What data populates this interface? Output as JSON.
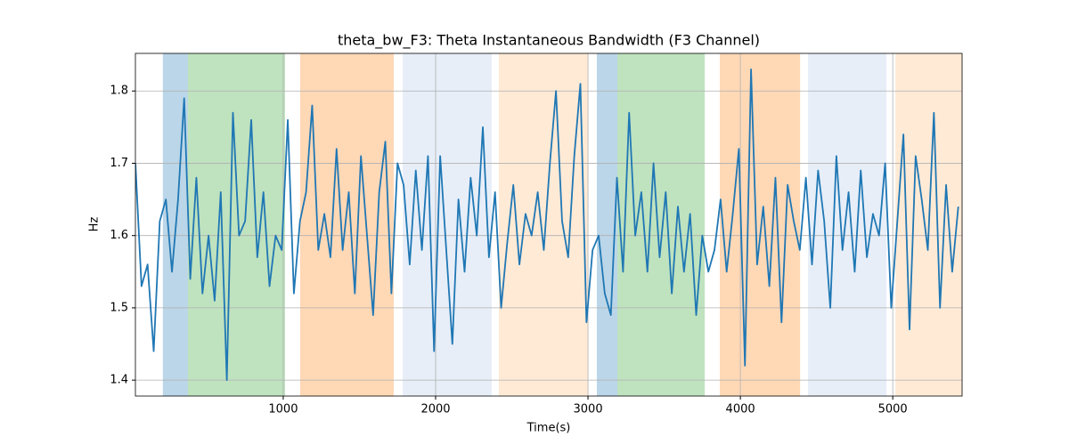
{
  "chart_data": {
    "type": "line",
    "title": "theta_bw_F3: Theta Instantaneous Bandwidth (F3 Channel)",
    "xlabel": "Time(s)",
    "ylabel": "Hz",
    "xlim": [
      30,
      5455
    ],
    "ylim": [
      1.378,
      1.852
    ],
    "xticks": [
      1000,
      2000,
      3000,
      4000,
      5000
    ],
    "yticks": [
      1.4,
      1.5,
      1.6,
      1.7,
      1.8
    ],
    "grid": true,
    "spans": [
      {
        "start": 210,
        "end": 374,
        "color": "#1f77b4",
        "opacity": 0.3
      },
      {
        "start": 374,
        "end": 1012,
        "color": "#2ca02c",
        "opacity": 0.3
      },
      {
        "start": 1111,
        "end": 1725,
        "color": "#ff7f0e",
        "opacity": 0.3
      },
      {
        "start": 1784,
        "end": 2368,
        "color": "#aec7e8",
        "opacity": 0.3
      },
      {
        "start": 2415,
        "end": 3000,
        "color": "#ffbb78",
        "opacity": 0.3
      },
      {
        "start": 3058,
        "end": 3193,
        "color": "#1f77b4",
        "opacity": 0.3
      },
      {
        "start": 3193,
        "end": 3766,
        "color": "#2ca02c",
        "opacity": 0.3
      },
      {
        "start": 3865,
        "end": 4392,
        "color": "#ff7f0e",
        "opacity": 0.3
      },
      {
        "start": 4444,
        "end": 4959,
        "color": "#aec7e8",
        "opacity": 0.3
      },
      {
        "start": 5018,
        "end": 5455,
        "color": "#ffbb78",
        "opacity": 0.3
      }
    ],
    "x": [
      30,
      70,
      110,
      150,
      190,
      230,
      270,
      310,
      350,
      390,
      430,
      470,
      510,
      550,
      590,
      630,
      670,
      710,
      750,
      790,
      830,
      870,
      910,
      950,
      990,
      1030,
      1070,
      1110,
      1150,
      1190,
      1230,
      1270,
      1310,
      1350,
      1390,
      1430,
      1470,
      1510,
      1550,
      1590,
      1630,
      1670,
      1710,
      1750,
      1790,
      1830,
      1870,
      1910,
      1950,
      1990,
      2030,
      2070,
      2110,
      2150,
      2190,
      2230,
      2270,
      2310,
      2350,
      2390,
      2430,
      2470,
      2510,
      2550,
      2590,
      2630,
      2670,
      2710,
      2750,
      2790,
      2830,
      2870,
      2910,
      2950,
      2990,
      3030,
      3070,
      3110,
      3150,
      3190,
      3230,
      3270,
      3310,
      3350,
      3390,
      3430,
      3470,
      3510,
      3550,
      3590,
      3630,
      3670,
      3710,
      3750,
      3790,
      3830,
      3870,
      3910,
      3950,
      3990,
      4030,
      4070,
      4110,
      4150,
      4190,
      4230,
      4270,
      4310,
      4350,
      4390,
      4430,
      4470,
      4510,
      4550,
      4590,
      4630,
      4670,
      4710,
      4750,
      4790,
      4830,
      4870,
      4910,
      4950,
      4990,
      5030,
      5070,
      5110,
      5150,
      5190,
      5230,
      5270,
      5310,
      5350,
      5390,
      5430
    ],
    "series": [
      {
        "color": "#1f77b4",
        "values": [
          1.7,
          1.53,
          1.56,
          1.44,
          1.62,
          1.65,
          1.55,
          1.65,
          1.79,
          1.54,
          1.68,
          1.52,
          1.6,
          1.51,
          1.66,
          1.4,
          1.77,
          1.6,
          1.62,
          1.76,
          1.57,
          1.66,
          1.53,
          1.6,
          1.58,
          1.76,
          1.52,
          1.62,
          1.66,
          1.78,
          1.58,
          1.63,
          1.57,
          1.72,
          1.58,
          1.66,
          1.52,
          1.71,
          1.6,
          1.49,
          1.66,
          1.73,
          1.52,
          1.7,
          1.67,
          1.56,
          1.69,
          1.58,
          1.71,
          1.44,
          1.71,
          1.58,
          1.45,
          1.65,
          1.55,
          1.68,
          1.6,
          1.75,
          1.57,
          1.66,
          1.5,
          1.59,
          1.67,
          1.56,
          1.63,
          1.6,
          1.66,
          1.58,
          1.7,
          1.8,
          1.62,
          1.57,
          1.71,
          1.81,
          1.48,
          1.58,
          1.6,
          1.52,
          1.49,
          1.68,
          1.55,
          1.77,
          1.6,
          1.66,
          1.55,
          1.7,
          1.57,
          1.66,
          1.52,
          1.64,
          1.55,
          1.63,
          1.49,
          1.6,
          1.55,
          1.58,
          1.65,
          1.55,
          1.63,
          1.72,
          1.42,
          1.83,
          1.56,
          1.64,
          1.53,
          1.68,
          1.48,
          1.67,
          1.62,
          1.58,
          1.68,
          1.56,
          1.69,
          1.62,
          1.5,
          1.71,
          1.58,
          1.66,
          1.55,
          1.69,
          1.57,
          1.63,
          1.6,
          1.7,
          1.5,
          1.62,
          1.74,
          1.47,
          1.71,
          1.65,
          1.58,
          1.77,
          1.5,
          1.67,
          1.55,
          1.64
        ]
      }
    ]
  }
}
